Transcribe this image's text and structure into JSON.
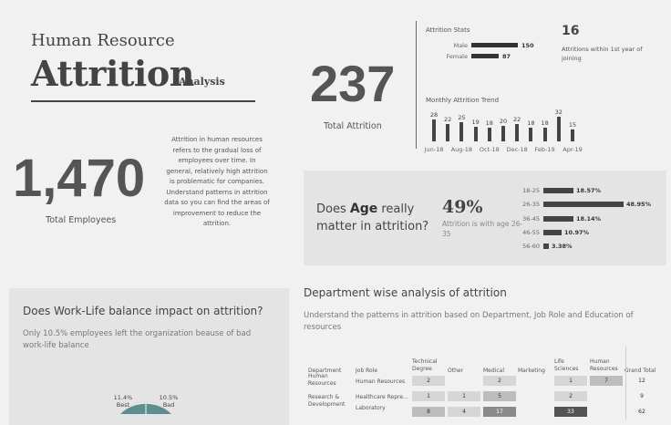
{
  "title": {
    "line1": "Human Resource",
    "line2": "Attrition",
    "line3": "Analysis"
  },
  "description": "Attrition in human resources refers to the gradual loss of employees over time. In general, relatively high attrition is problematic for companies. Understand patterns in attrition data so you can find the areas of improvement to reduce the attrition.",
  "kpis": {
    "total_employees": {
      "value": "1,470",
      "label": "Total Employees"
    },
    "total_attrition": {
      "value": "237",
      "label": "Total Attrition"
    }
  },
  "attrition_stats": {
    "title": "Attrition Stats",
    "gender": [
      {
        "label": "Male",
        "value": 150
      },
      {
        "label": "Female",
        "value": 87
      }
    ],
    "first_year_count": "16",
    "first_year_label": "Attritions within 1st year of joining"
  },
  "monthly_trend": {
    "title": "Monthly Attrition Trend",
    "values": [
      28,
      22,
      25,
      19,
      18,
      20,
      22,
      18,
      18,
      32,
      15
    ],
    "axis_labels": [
      "Jun-18",
      "Aug-18",
      "Oct-18",
      "Dec-18",
      "Feb-19",
      "Apr-19"
    ]
  },
  "age": {
    "question_pre": "Does ",
    "question_bold": "Age",
    "question_post": " really matter in attrition?",
    "highlight_pct": "49%",
    "highlight_text": "Attrition is with age 26-35",
    "groups": [
      {
        "label": "18-25",
        "value": 18.57,
        "text": "18.57%"
      },
      {
        "label": "26-35",
        "value": 48.95,
        "text": "48.95%"
      },
      {
        "label": "36-45",
        "value": 18.14,
        "text": "18.14%"
      },
      {
        "label": "46-55",
        "value": 10.97,
        "text": "10.97%"
      },
      {
        "label": "56-60",
        "value": 3.38,
        "text": "3.38%"
      }
    ]
  },
  "work_life": {
    "title": "Does Work-Life balance impact on attrition?",
    "subtitle": "Only 10.5% employees left the organization beause of bad work-life balance",
    "slices": [
      {
        "pct": "11.4%",
        "label": "Best"
      },
      {
        "pct": "10.5%",
        "label": "Bad"
      }
    ]
  },
  "department": {
    "title": "Department wise analysis of attrition",
    "subtitle": "Understand the patterns in attrition based on Department, Job Role and Education of resources",
    "col_headers": {
      "department": "Department",
      "job_role": "Job Role",
      "technical_degree": "Technical Degree",
      "other": "Other",
      "medical": "Medical",
      "marketing": "Marketing",
      "life_sciences": "Life Sciences",
      "human_resources": "Human Resources",
      "grand_total": "Grand Total"
    },
    "rows": [
      {
        "department": "Human Resources",
        "job_role": "Human Resources",
        "technical_degree": "2",
        "other": "",
        "medical": "2",
        "marketing": "",
        "life_sciences": "1",
        "human_resources": "7",
        "grand_total": "12"
      },
      {
        "department": "Research & Development",
        "job_role": "Healthcare Repre...",
        "technical_degree": "1",
        "other": "1",
        "medical": "5",
        "marketing": "",
        "life_sciences": "2",
        "human_resources": "",
        "grand_total": "9"
      },
      {
        "department": "",
        "job_role": "Laboratory",
        "technical_degree": "8",
        "other": "4",
        "medical": "17",
        "marketing": "",
        "life_sciences": "33",
        "human_resources": "",
        "grand_total": "62"
      }
    ]
  }
}
